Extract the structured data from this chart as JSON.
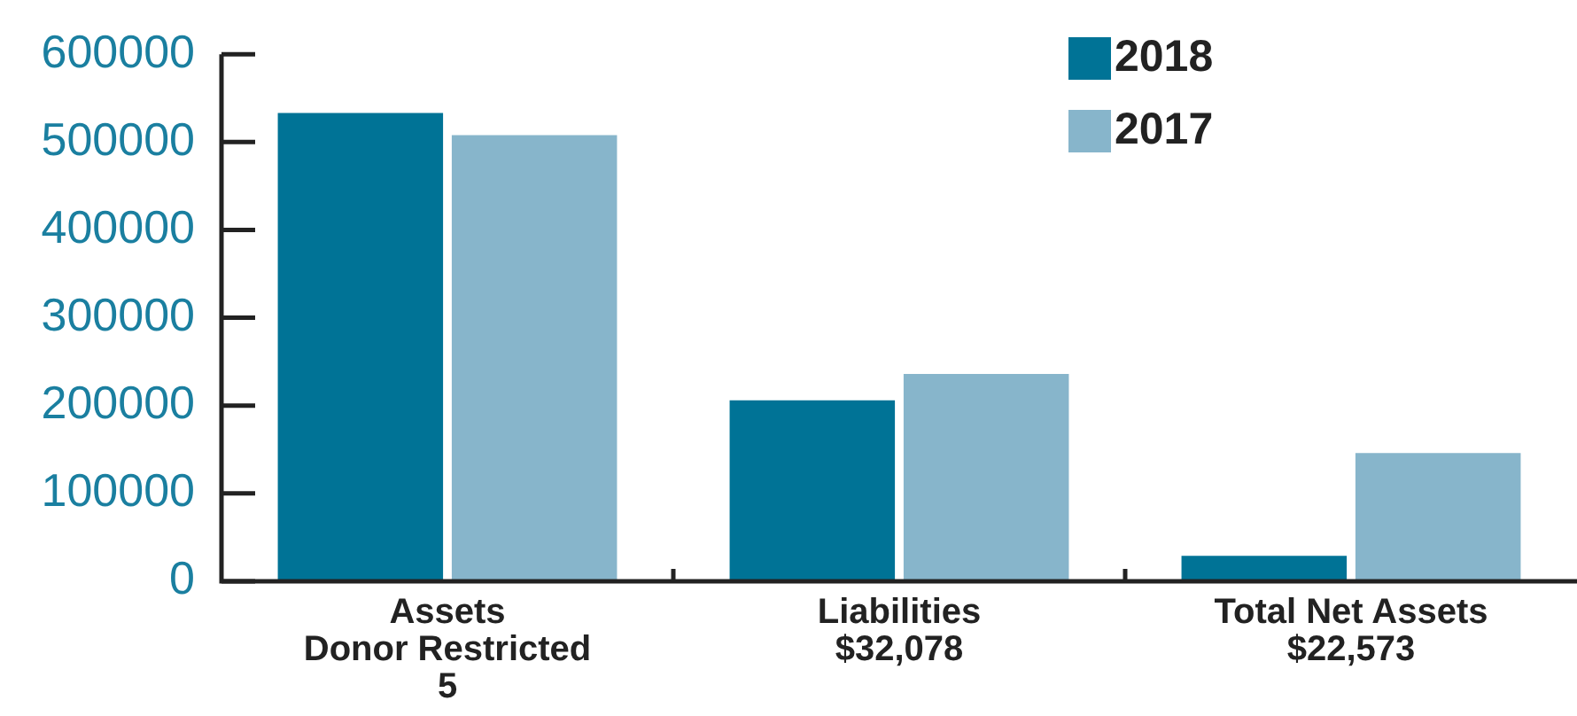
{
  "chart_data": {
    "type": "bar",
    "categories": [
      "Assets",
      "Liabilities",
      "Total Net Assets"
    ],
    "series": [
      {
        "name": "2018",
        "color": "#007396",
        "values": [
          533000,
          206000,
          29000
        ]
      },
      {
        "name": "2017",
        "color": "#87b5cb",
        "values": [
          508000,
          236000,
          146000
        ]
      }
    ],
    "ylim": [
      0,
      600000
    ],
    "yticks": [
      0,
      100000,
      200000,
      300000,
      400000,
      500000,
      600000
    ],
    "grid": false,
    "legend": "top right",
    "annotations": [
      "Donor Restricted",
      "5",
      "$32,078",
      "$22,573"
    ]
  }
}
